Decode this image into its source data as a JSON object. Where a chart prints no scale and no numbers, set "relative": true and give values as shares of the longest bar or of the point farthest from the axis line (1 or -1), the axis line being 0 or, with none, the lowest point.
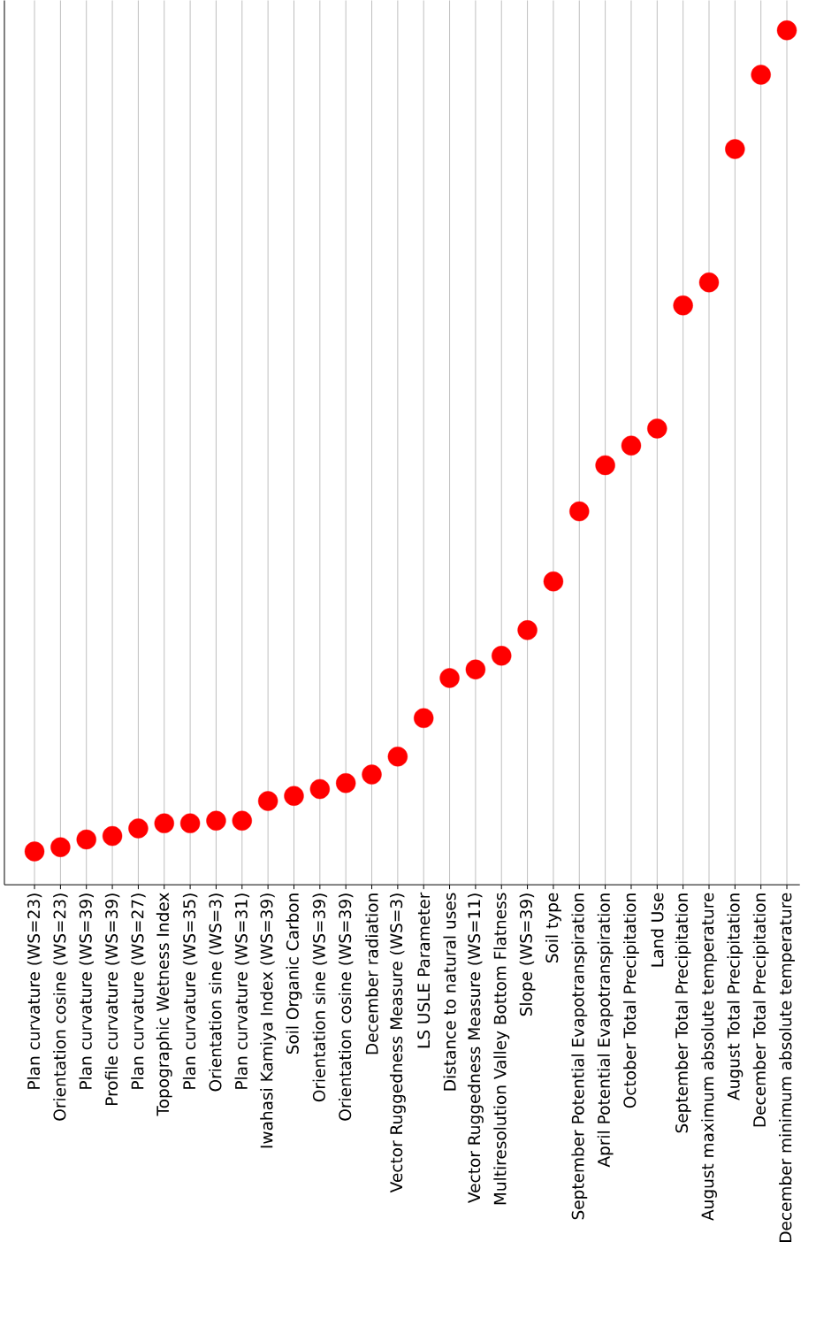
{
  "chart_data": {
    "type": "scatter",
    "relative": true,
    "grid": "x",
    "marker": "circle",
    "color": "#ff0000",
    "categories": [
      "Plan curvature (WS=23)",
      "Orientation cosine (WS=23)",
      "Plan curvature (WS=39)",
      "Profile curvature (WS=39)",
      "Plan curvature (WS=27)",
      "Topographic Wetness Index",
      "Plan curvature (WS=35)",
      "Orientation sine (WS=3)",
      "Plan curvature (WS=31)",
      "Iwahasi Kamiya Index (WS=39)",
      "Soil Organic Carbon",
      "Orientation sine (WS=39)",
      "Orientation cosine (WS=39)",
      "December radiation",
      "Vector Ruggedness Measure (WS=3)",
      "LS USLE Parameter",
      "Distance to natural uses",
      "Vector Ruggedness Measure (WS=11)",
      "Multiresolution Valley Bottom Flatness",
      "Slope (WS=39)",
      "Soil type",
      "September Potential Evapotranspiration",
      "April Potential Evapotranspiration",
      "October Total Precipitation",
      "Land Use",
      "September Total Precipitation",
      "August maximum absolute temperature",
      "August Total Precipitation",
      "December Total Precipitation",
      "December minimum absolute temperature"
    ],
    "values": [
      0.039,
      0.044,
      0.053,
      0.057,
      0.066,
      0.072,
      0.072,
      0.075,
      0.075,
      0.098,
      0.104,
      0.112,
      0.119,
      0.129,
      0.15,
      0.195,
      0.242,
      0.252,
      0.268,
      0.298,
      0.355,
      0.437,
      0.491,
      0.514,
      0.534,
      0.678,
      0.705,
      0.861,
      0.948,
      1.0
    ]
  }
}
